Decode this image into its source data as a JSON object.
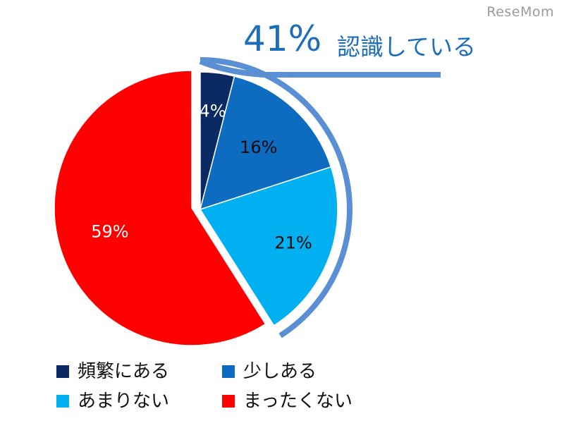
{
  "watermark": "ReseMom",
  "callout": {
    "percent": "41%",
    "text": "認識している",
    "color": "#5b8fd4"
  },
  "chart_data": {
    "type": "pie",
    "slices": [
      {
        "label": "頻繁にある",
        "value": 4,
        "display": "4%",
        "color": "#0b2a63",
        "label_color": "#ffffff"
      },
      {
        "label": "少しある",
        "value": 16,
        "display": "16%",
        "color": "#0d6cc0",
        "label_color": "#0a0a0a"
      },
      {
        "label": "あまりない",
        "value": 21,
        "display": "21%",
        "color": "#00b0f0",
        "label_color": "#0a0a0a"
      },
      {
        "label": "まったくない",
        "value": 59,
        "display": "59%",
        "color": "#ff0000",
        "label_color": "#ffffff"
      }
    ],
    "exploded_group": [
      "頻繁にある",
      "少しある",
      "あまりない"
    ],
    "legend_position": "bottom"
  }
}
